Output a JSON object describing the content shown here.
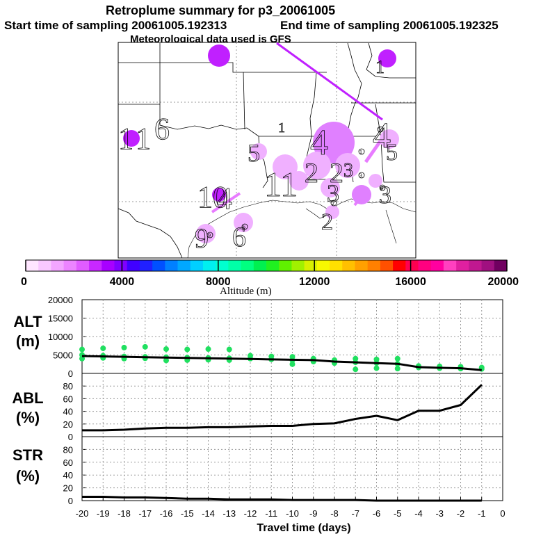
{
  "header": {
    "title": "Retroplume summary for p3_20061005",
    "start_label": "Start time of sampling 20061005.192313",
    "end_label": "End time of sampling 20061005.192325",
    "met_label": "Meteorological data used is GFS"
  },
  "colorbar": {
    "title": "Altitude (m)",
    "ticks": [
      "0",
      "4000",
      "8000",
      "12000",
      "16000",
      "20000"
    ],
    "colors": [
      "#ffe6ff",
      "#f9c8ff",
      "#f3a6ff",
      "#ec84ff",
      "#e05cff",
      "#c828ff",
      "#a800ff",
      "#8000ff",
      "#4000ff",
      "#2020ff",
      "#0050ff",
      "#0080ff",
      "#00a8ff",
      "#00d0ff",
      "#00f0f0",
      "#00ffd0",
      "#00ffa8",
      "#00ff80",
      "#00f050",
      "#20f020",
      "#60f000",
      "#a0f000",
      "#d8f000",
      "#f8f800",
      "#ffe000",
      "#ffc000",
      "#ffa000",
      "#ff8000",
      "#ff5000",
      "#ff0000",
      "#ff0050",
      "#ff0080",
      "#ff00a0",
      "#ff40c0",
      "#e020a0",
      "#c01890",
      "#a01080",
      "#700060"
    ]
  },
  "map": {
    "release_labels": [
      "1",
      "1",
      "6",
      "5",
      "4",
      "11",
      "2",
      "2",
      "3",
      "3",
      "2",
      "4",
      "3",
      "10",
      "4",
      "1",
      "9",
      "6",
      "5",
      "1"
    ],
    "label_markers": [
      "9",
      "6",
      "3",
      "4",
      "5",
      "1",
      "2"
    ]
  },
  "chart_data": [
    {
      "type": "line",
      "name": "ALT",
      "title": "ALT",
      "ylabel": "(m)",
      "ylim": [
        0,
        20000
      ],
      "yticks": [
        "0",
        "5000",
        "10000",
        "15000",
        "20000"
      ],
      "x": [
        -20,
        -19,
        -18,
        -17,
        -16,
        -15,
        -14,
        -13,
        -12,
        -11,
        -10,
        -9,
        -8,
        -7,
        -6,
        -5,
        -4,
        -3,
        -2,
        -1
      ],
      "series": [
        {
          "name": "mean altitude",
          "values": [
            4700,
            4600,
            4500,
            4400,
            4300,
            4200,
            4100,
            4000,
            3900,
            3800,
            3700,
            3600,
            3200,
            3000,
            2800,
            2600,
            1700,
            1500,
            1400,
            900
          ]
        }
      ],
      "scatter": {
        "x": [
          -20,
          -20,
          -20,
          -19,
          -19,
          -19,
          -18,
          -18,
          -18,
          -17,
          -17,
          -17,
          -16,
          -16,
          -16,
          -15,
          -15,
          -15,
          -14,
          -14,
          -14,
          -13,
          -13,
          -13,
          -12,
          -12,
          -11,
          -11,
          -10,
          -10,
          -10,
          -9,
          -9,
          -8,
          -8,
          -7,
          -7,
          -7,
          -6,
          -6,
          -6,
          -5,
          -5,
          -5,
          -4,
          -4,
          -3,
          -3,
          -2,
          -2,
          -1,
          -1
        ],
        "y": [
          6500,
          5000,
          4000,
          6800,
          4800,
          4200,
          7000,
          4600,
          4000,
          7200,
          4500,
          4100,
          6600,
          4400,
          3500,
          6500,
          4300,
          3600,
          6600,
          4200,
          3700,
          6500,
          4100,
          3600,
          4800,
          4000,
          4600,
          3800,
          4500,
          3600,
          2500,
          4000,
          3200,
          3600,
          2800,
          4000,
          3000,
          1100,
          3800,
          2800,
          1400,
          4000,
          2600,
          1300,
          2000,
          1600,
          1900,
          1400,
          1800,
          1300,
          1600,
          1200
        ]
      }
    },
    {
      "type": "line",
      "name": "ABL",
      "title": "ABL",
      "ylabel": "(%)",
      "ylim": [
        0,
        100
      ],
      "yticks": [
        "0",
        "20",
        "40",
        "60",
        "80"
      ],
      "x": [
        -20,
        -19,
        -18,
        -17,
        -16,
        -15,
        -14,
        -13,
        -12,
        -11,
        -10,
        -9,
        -8,
        -7,
        -6,
        -5,
        -4,
        -3,
        -2,
        -1
      ],
      "series": [
        {
          "name": "ABL fraction",
          "values": [
            10,
            10,
            11,
            13,
            14,
            14,
            15,
            15,
            16,
            17,
            17,
            20,
            21,
            28,
            33,
            26,
            41,
            41,
            50,
            82
          ]
        }
      ]
    },
    {
      "type": "line",
      "name": "STR",
      "title": "STR",
      "ylabel": "(%)",
      "xlabel": "Travel time (days)",
      "ylim": [
        0,
        100
      ],
      "yticks": [
        "0",
        "20",
        "40",
        "60",
        "80"
      ],
      "xticks": [
        "-20",
        "-19",
        "-18",
        "-17",
        "-16",
        "-15",
        "-14",
        "-13",
        "-12",
        "-11",
        "-10",
        "-9",
        "-8",
        "-7",
        "-6",
        "-5",
        "-4",
        "-3",
        "-2",
        "-1",
        "0"
      ],
      "x": [
        -20,
        -19,
        -18,
        -17,
        -16,
        -15,
        -14,
        -13,
        -12,
        -11,
        -10,
        -9,
        -8,
        -7,
        -6,
        -5,
        -4,
        -3,
        -2,
        -1
      ],
      "series": [
        {
          "name": "STR fraction",
          "values": [
            6,
            6,
            5,
            5,
            4,
            3,
            3,
            2,
            2,
            2,
            1,
            1,
            1,
            1,
            0,
            0,
            0,
            0,
            0,
            0
          ]
        }
      ]
    }
  ]
}
